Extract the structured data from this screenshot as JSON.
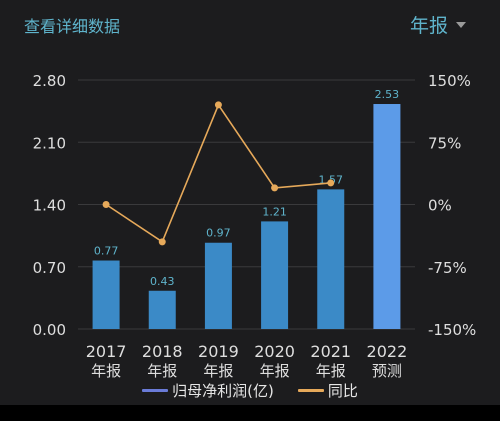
{
  "header": {
    "view_details": "查看详细数据",
    "period": "年报"
  },
  "colors": {
    "bar": "#3b8ac7",
    "bar_forecast": "#5c9be8",
    "line": "#e6a95a",
    "bar_label": "#5fb4cc",
    "tick": "#dedede",
    "grid": "#3a3a3c",
    "legend_bar": "#6a7bd8",
    "legend_line": "#e6a95a"
  },
  "chart_data": {
    "type": "bar",
    "categories": [
      "2017",
      "2018",
      "2019",
      "2020",
      "2021",
      "2022"
    ],
    "category_sublabels": [
      "年报",
      "年报",
      "年报",
      "年报",
      "年报",
      "预测"
    ],
    "series": [
      {
        "name": "归母净利润(亿)",
        "type": "bar",
        "axis": "left",
        "values": [
          0.77,
          0.43,
          0.97,
          1.21,
          1.57,
          2.53
        ],
        "labels": [
          "0.77",
          "0.43",
          "0.97",
          "1.21",
          "1.57",
          "2.53"
        ],
        "forecast_index": 5
      },
      {
        "name": "同比",
        "type": "line",
        "axis": "right",
        "values": [
          0,
          -45,
          120,
          20,
          26,
          null
        ]
      }
    ],
    "y_left": {
      "ticks": [
        0.0,
        0.7,
        1.4,
        2.1,
        2.8
      ],
      "tick_labels": [
        "0.00",
        "0.70",
        "1.40",
        "2.10",
        "2.80"
      ],
      "range": [
        0,
        2.8
      ]
    },
    "y_right": {
      "ticks": [
        -150,
        -75,
        0,
        75,
        150
      ],
      "tick_labels": [
        "-150%",
        "-75%",
        "0%",
        "75%",
        "150%"
      ],
      "range": [
        -150,
        150
      ]
    },
    "grid": true,
    "legend_position": "bottom-center"
  }
}
